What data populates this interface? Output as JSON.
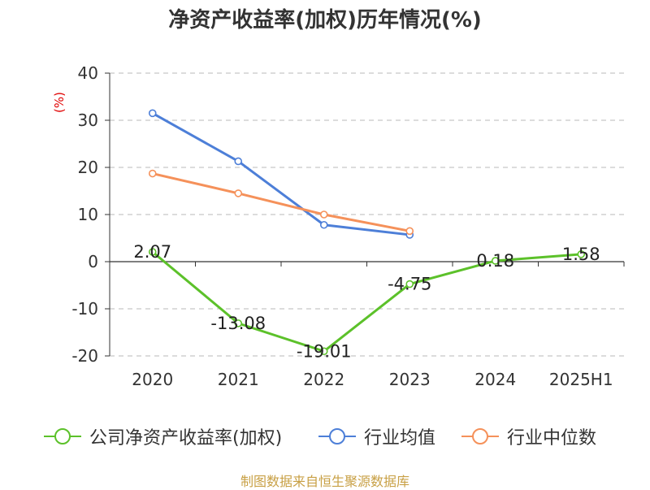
{
  "title": "净资产收益率(加权)历年情况(%)",
  "source": "制图数据来自恒生聚源数据库",
  "colors": {
    "company": "#5cc12a",
    "industry_avg": "#4d7fd8",
    "industry_median": "#f5915a",
    "axis": "#333333",
    "grid": "#c8c8c8",
    "unit": "#e00000"
  },
  "chart_data": {
    "type": "line",
    "title": "净资产收益率(加权)历年情况(%)",
    "ylabel": "(%)",
    "xlabel": "",
    "categories": [
      "2020",
      "2021",
      "2022",
      "2023",
      "2024",
      "2025H1"
    ],
    "ylim": [
      -20,
      40
    ],
    "yticks": [
      -20,
      -10,
      0,
      10,
      20,
      30,
      40
    ],
    "grid": true,
    "legend_position": "bottom",
    "series": [
      {
        "name": "公司净资产收益率(加权)",
        "color": "#5cc12a",
        "values": [
          2.07,
          -13.08,
          -19.01,
          -4.75,
          0.18,
          1.58
        ],
        "labels": [
          "2.07",
          "-13.08",
          "-19.01",
          "-4.75",
          "0.18",
          "1.58"
        ]
      },
      {
        "name": "行业均值",
        "color": "#4d7fd8",
        "values": [
          31.5,
          21.3,
          7.8,
          5.7,
          null,
          null
        ]
      },
      {
        "name": "行业中位数",
        "color": "#f5915a",
        "values": [
          18.7,
          14.5,
          10.0,
          6.5,
          null,
          null
        ]
      }
    ]
  }
}
